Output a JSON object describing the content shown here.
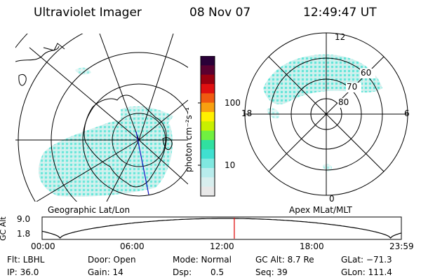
{
  "header": {
    "title": "Ultraviolet Imager",
    "date": "08 Nov 07",
    "time": "12:49:47 UT"
  },
  "left_map": {
    "label": "Geographic Lat/Lon"
  },
  "right_map": {
    "label": "Apex MLat/MLT",
    "mlt_labels": {
      "top": "12",
      "left": "18",
      "right": "6",
      "bottom": "0"
    },
    "lat_labels": [
      "60",
      "70",
      "80"
    ]
  },
  "colorbar": {
    "unit_label": "photon cm⁻²s⁻¹",
    "ticks": [
      "100",
      "10"
    ],
    "colors": [
      "#2a0038",
      "#5a0030",
      "#9a0010",
      "#e01010",
      "#f05a10",
      "#f8a010",
      "#fff000",
      "#c8f000",
      "#70f040",
      "#30e0a0",
      "#40e0d0",
      "#80e8e0",
      "#b8ecec",
      "#d8eeee",
      "#e8e8e8"
    ]
  },
  "altitude_plot": {
    "ylabel": "GC Alt",
    "yticks": [
      "9.0",
      "1.8"
    ],
    "xticks": [
      "00:00",
      "06:00",
      "12:00",
      "18:00",
      "23:59"
    ],
    "current_time_fraction": 0.535
  },
  "info": {
    "flt": "Flt: LBHL",
    "ip": "IP: 36.0",
    "door": "Door: Open",
    "gain": "Gain: 14",
    "mode": "Mode: Normal",
    "dsp_label": "Dsp:",
    "dsp_value": "0.5",
    "gc_alt": "GC Alt: 8.7 Re",
    "seq": "Seq: 39",
    "glat": "GLat: −71.3",
    "glon": "GLon: 111.4"
  }
}
